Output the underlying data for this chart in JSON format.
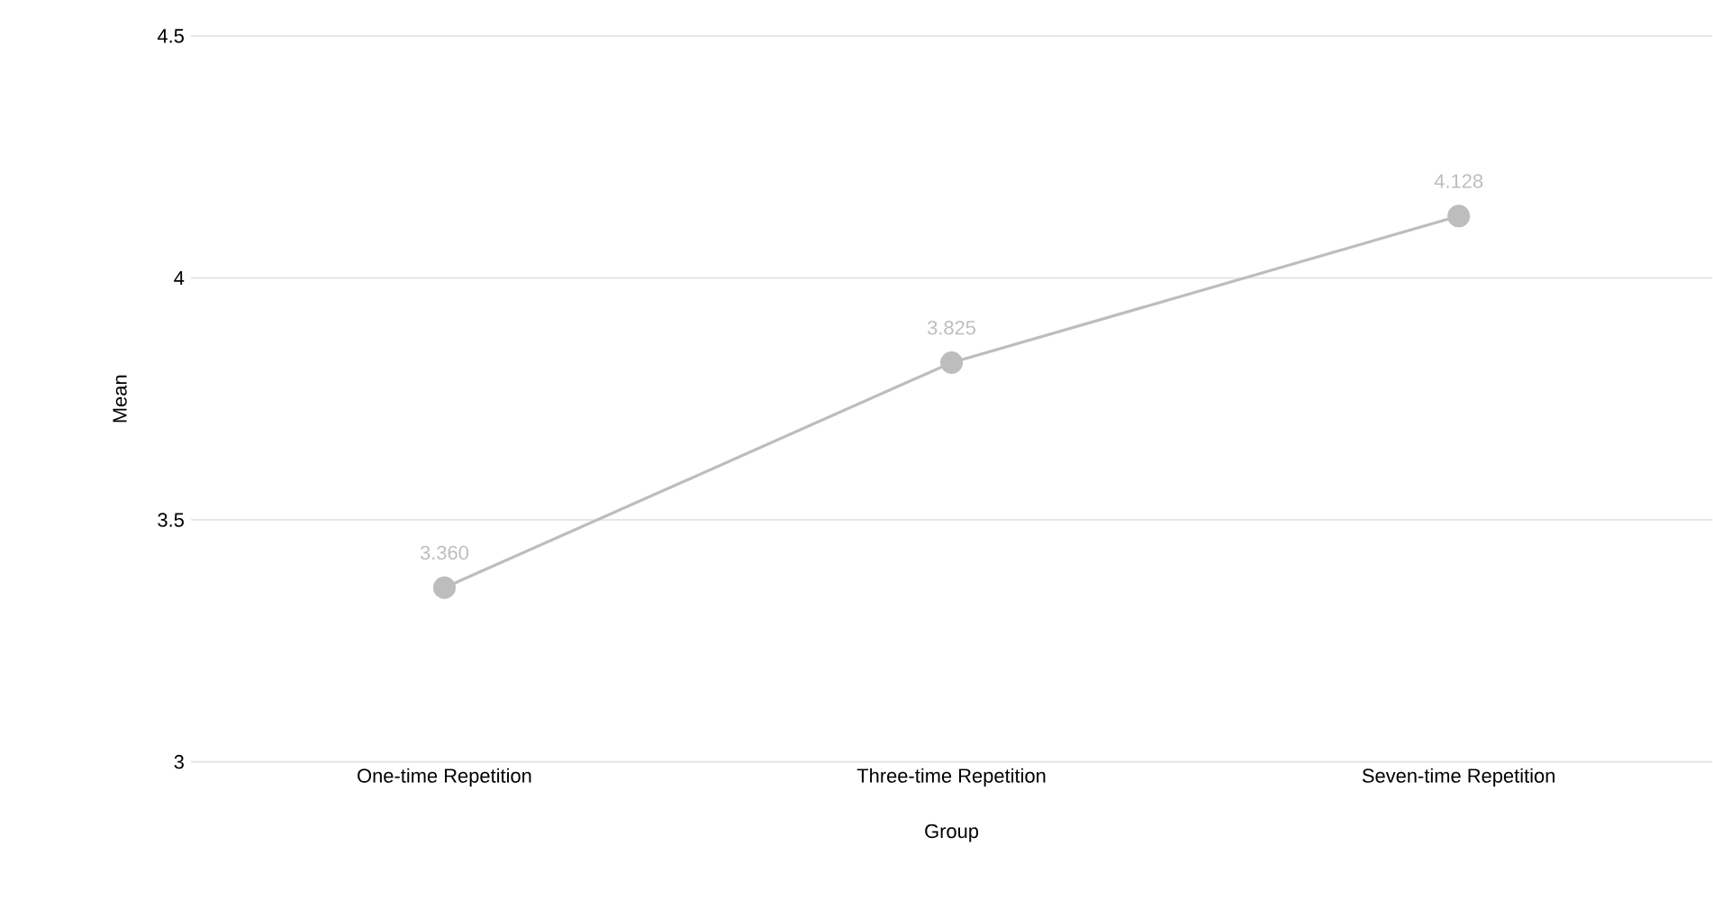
{
  "chart_data": {
    "type": "line",
    "xlabel": "Group",
    "ylabel": "Mean",
    "categories": [
      "One-time Repetition",
      "Three-time Repetition",
      "Seven-time Repetition"
    ],
    "series": [
      {
        "color": "#bdbdbd",
        "values": [
          3.36,
          3.825,
          4.128
        ],
        "value_labels": [
          "3.360",
          "3.825",
          "4.128"
        ]
      }
    ],
    "ylim": [
      3,
      4.5
    ],
    "yticks": [
      3,
      3.5,
      4,
      4.5
    ],
    "grid": "y",
    "marker": "circle",
    "line_style": "solid"
  }
}
